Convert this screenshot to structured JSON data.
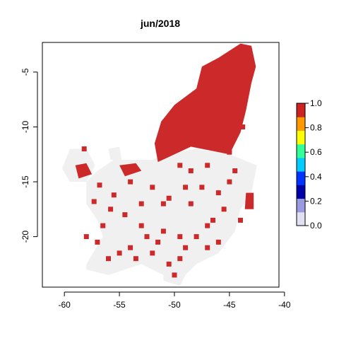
{
  "chart_data": {
    "type": "heatmap",
    "title": "jun/2018",
    "xlabel": "",
    "ylabel": "",
    "xlim": [
      -62.0,
      -40.5
    ],
    "ylim": [
      -24.6,
      -2.3
    ],
    "x_ticks": [
      -60,
      -55,
      -50,
      -45,
      -40
    ],
    "x_tick_labels": [
      "-60",
      "-55",
      "-50",
      "-45",
      "-40"
    ],
    "y_ticks": [
      -5,
      -10,
      -15,
      -20
    ],
    "y_tick_labels": [
      "-5",
      "-10",
      "-15",
      "-20"
    ],
    "grid": false,
    "legend": {
      "placement": "right",
      "range": [
        0.0,
        1.0
      ],
      "ticks": [
        0.0,
        0.2,
        0.4,
        0.6,
        0.8,
        1.0
      ],
      "tick_labels": [
        "0.0",
        "0.2",
        "0.4",
        "0.6",
        "0.8",
        "1.0"
      ],
      "colors": [
        "#E0E0F2",
        "#9A9AE0",
        "#0000AA",
        "#0033FF",
        "#00CCFF",
        "#33FF99",
        "#FFFF00",
        "#FF9900",
        "#CC2222"
      ]
    },
    "colors": {
      "value_1": "#CC2A2A",
      "value_0": "#F0F0F0"
    },
    "regions": [
      {
        "value": 0,
        "ring": [
          [
            -55.5,
            -13.0
          ],
          [
            -52.0,
            -13.0
          ],
          [
            -51.0,
            -12.5
          ],
          [
            -48.0,
            -12.0
          ],
          [
            -45.0,
            -12.5
          ],
          [
            -42.5,
            -13.5
          ],
          [
            -43.0,
            -16.0
          ],
          [
            -44.0,
            -17.5
          ],
          [
            -44.5,
            -19.5
          ],
          [
            -46.0,
            -21.5
          ],
          [
            -48.0,
            -22.5
          ],
          [
            -49.0,
            -23.5
          ],
          [
            -49.5,
            -24.5
          ],
          [
            -51.0,
            -24.0
          ],
          [
            -51.0,
            -23.5
          ],
          [
            -53.0,
            -22.5
          ],
          [
            -56.0,
            -23.5
          ],
          [
            -58.0,
            -23.0
          ],
          [
            -58.0,
            -22.5
          ],
          [
            -56.5,
            -20.0
          ],
          [
            -57.0,
            -18.5
          ],
          [
            -58.0,
            -17.0
          ],
          [
            -58.0,
            -15.0
          ],
          [
            -57.0,
            -14.0
          ],
          [
            -55.5,
            -13.0
          ]
        ]
      },
      {
        "value": 0,
        "ring": [
          [
            -59.5,
            -12.0
          ],
          [
            -58.0,
            -12.0
          ],
          [
            -57.2,
            -13.5
          ],
          [
            -58.0,
            -15.0
          ],
          [
            -59.5,
            -15.0
          ],
          [
            -60.2,
            -13.8
          ],
          [
            -59.5,
            -12.0
          ]
        ]
      },
      {
        "value": 0,
        "ring": [
          [
            -56.0,
            -12.0
          ],
          [
            -55.0,
            -11.8
          ],
          [
            -54.8,
            -13.0
          ],
          [
            -55.8,
            -13.0
          ],
          [
            -56.0,
            -12.0
          ]
        ]
      },
      {
        "value": 1,
        "ring": [
          [
            -44.0,
            -2.4
          ],
          [
            -43.0,
            -2.6
          ],
          [
            -42.6,
            -4.5
          ],
          [
            -43.0,
            -6.0
          ],
          [
            -43.5,
            -8.5
          ],
          [
            -44.0,
            -10.5
          ],
          [
            -45.0,
            -12.5
          ],
          [
            -48.5,
            -11.8
          ],
          [
            -50.0,
            -12.5
          ],
          [
            -51.5,
            -13.2
          ],
          [
            -51.8,
            -11.5
          ],
          [
            -51.2,
            -9.5
          ],
          [
            -50.0,
            -8.0
          ],
          [
            -48.0,
            -6.5
          ],
          [
            -47.5,
            -4.5
          ],
          [
            -46.0,
            -3.7
          ],
          [
            -44.0,
            -2.4
          ]
        ]
      },
      {
        "value": 1,
        "ring": [
          [
            -59.0,
            -13.5
          ],
          [
            -58.0,
            -13.3
          ],
          [
            -57.5,
            -14.3
          ],
          [
            -58.7,
            -14.7
          ],
          [
            -59.0,
            -13.5
          ]
        ]
      },
      {
        "value": 1,
        "ring": [
          [
            -55.0,
            -13.5
          ],
          [
            -53.5,
            -13.3
          ],
          [
            -53.0,
            -14.0
          ],
          [
            -54.5,
            -14.5
          ],
          [
            -55.0,
            -13.5
          ]
        ]
      },
      {
        "value": 1,
        "ring": [
          [
            -43.5,
            -16.0
          ],
          [
            -42.8,
            -16.0
          ],
          [
            -42.8,
            -17.5
          ],
          [
            -43.6,
            -17.5
          ],
          [
            -43.5,
            -16.0
          ]
        ]
      }
    ],
    "scattered_positive_cells": [
      [
        -58.2,
        -12.0
      ],
      [
        -56.8,
        -15.3
      ],
      [
        -55.5,
        -16.2
      ],
      [
        -54.0,
        -15.0
      ],
      [
        -53.0,
        -17.0
      ],
      [
        -54.5,
        -18.0
      ],
      [
        -52.0,
        -15.5
      ],
      [
        -51.0,
        -17.0
      ],
      [
        -50.5,
        -16.5
      ],
      [
        -49.0,
        -15.5
      ],
      [
        -48.5,
        -14.0
      ],
      [
        -47.5,
        -15.5
      ],
      [
        -46.0,
        -16.0
      ],
      [
        -45.5,
        -17.5
      ],
      [
        -44.0,
        -18.5
      ],
      [
        -47.0,
        -19.0
      ],
      [
        -48.0,
        -20.0
      ],
      [
        -49.5,
        -20.0
      ],
      [
        -51.5,
        -20.5
      ],
      [
        -52.5,
        -20.0
      ],
      [
        -51.0,
        -19.5
      ],
      [
        -49.0,
        -21.0
      ],
      [
        -47.0,
        -21.0
      ],
      [
        -46.0,
        -20.5
      ],
      [
        -55.0,
        -21.5
      ],
      [
        -54.0,
        -21.0
      ],
      [
        -56.0,
        -22.0
      ],
      [
        -53.5,
        -22.0
      ],
      [
        -49.5,
        -22.0
      ],
      [
        -50.5,
        -22.5
      ],
      [
        -50.0,
        -23.5
      ],
      [
        -57.0,
        -20.5
      ],
      [
        -56.5,
        -19.0
      ],
      [
        -58.0,
        -20.0
      ],
      [
        -52.0,
        -21.5
      ],
      [
        -46.5,
        -18.5
      ],
      [
        -48.5,
        -17.0
      ],
      [
        -45.0,
        -15.0
      ],
      [
        -44.5,
        -14.0
      ],
      [
        -47.0,
        -13.5
      ],
      [
        -49.5,
        -13.5
      ],
      [
        -53.0,
        -19.0
      ],
      [
        -55.8,
        -17.5
      ],
      [
        -57.3,
        -16.8
      ],
      [
        -45.0,
        -12.3
      ],
      [
        -43.8,
        -10.0
      ],
      [
        -46.0,
        -10.5
      ]
    ]
  }
}
